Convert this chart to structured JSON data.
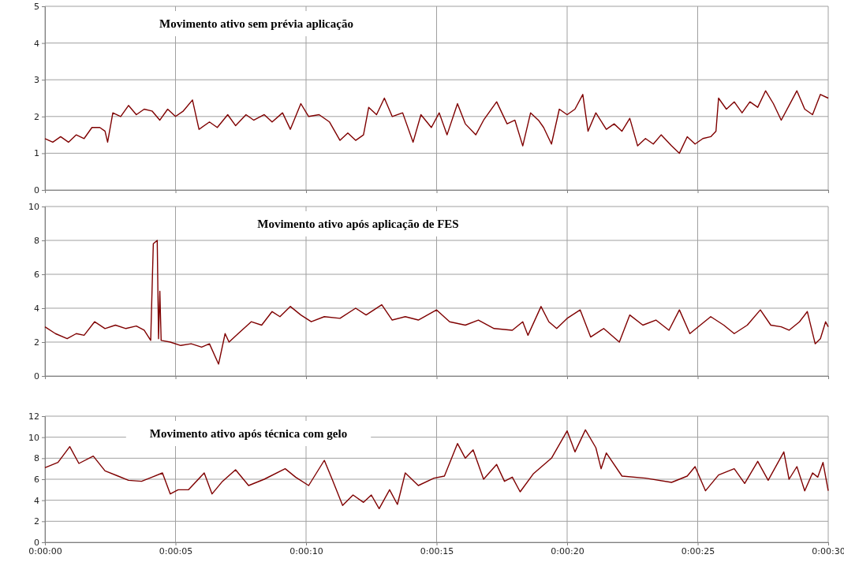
{
  "chart_data": [
    {
      "type": "line",
      "title": "Movimento ativo sem prévia aplicação",
      "xlim": [
        0,
        30
      ],
      "xticks": [
        0,
        5,
        10,
        15,
        20,
        25,
        30
      ],
      "ylim": [
        0,
        5
      ],
      "yticks": [
        0,
        1,
        2,
        3,
        4,
        5
      ],
      "grid": true,
      "tick_labels": "y",
      "x": [
        0,
        0.3,
        0.6,
        0.9,
        1.2,
        1.5,
        1.8,
        2.1,
        2.3,
        2.4,
        2.6,
        2.9,
        3.2,
        3.5,
        3.8,
        4.1,
        4.4,
        4.7,
        5.0,
        5.3,
        5.65,
        5.9,
        6.3,
        6.6,
        7.0,
        7.3,
        7.7,
        8.0,
        8.4,
        8.7,
        9.1,
        9.4,
        9.8,
        10.1,
        10.5,
        10.9,
        11.3,
        11.6,
        11.9,
        12.2,
        12.4,
        12.7,
        13.0,
        13.3,
        13.7,
        14.1,
        14.4,
        14.8,
        15.1,
        15.4,
        15.8,
        16.1,
        16.5,
        16.8,
        17.3,
        17.7,
        18.0,
        18.3,
        18.6,
        18.9,
        19.1,
        19.4,
        19.7,
        20.0,
        20.3,
        20.6,
        20.8,
        21.1,
        21.5,
        21.8,
        22.1,
        22.4,
        22.7,
        23.0,
        23.3,
        23.6,
        24.0,
        24.3,
        24.6,
        24.9,
        25.2,
        25.5,
        25.7,
        25.8,
        26.1,
        26.4,
        26.7,
        27.0,
        27.3,
        27.6,
        27.9,
        28.2,
        28.5,
        28.8,
        29.1,
        29.4,
        29.7,
        30
      ],
      "series": [
        {
          "color": "#7f0000",
          "values": [
            1.4,
            1.3,
            1.45,
            1.3,
            1.5,
            1.4,
            1.7,
            1.7,
            1.6,
            1.3,
            2.1,
            2.0,
            2.3,
            2.05,
            2.2,
            2.15,
            1.9,
            2.2,
            2.0,
            2.15,
            2.45,
            1.65,
            1.85,
            1.7,
            2.05,
            1.75,
            2.05,
            1.9,
            2.05,
            1.85,
            2.1,
            1.65,
            2.35,
            2.0,
            2.05,
            1.85,
            1.35,
            1.55,
            1.35,
            1.5,
            2.25,
            2.05,
            2.5,
            2.0,
            2.1,
            1.3,
            2.05,
            1.7,
            2.1,
            1.5,
            2.35,
            1.8,
            1.5,
            1.9,
            2.4,
            1.8,
            1.9,
            1.2,
            2.1,
            1.9,
            1.7,
            1.25,
            2.2,
            2.05,
            2.2,
            2.6,
            1.6,
            2.1,
            1.65,
            1.8,
            1.6,
            1.95,
            1.2,
            1.4,
            1.25,
            1.5,
            1.2,
            1.0,
            1.45,
            1.25,
            1.4,
            1.45,
            1.6,
            2.5,
            2.2,
            2.4,
            2.1,
            2.4,
            2.25,
            2.7,
            2.35,
            1.9,
            2.3,
            2.7,
            2.2,
            2.05,
            2.6,
            2.5
          ]
        }
      ]
    },
    {
      "type": "line",
      "title": "Movimento ativo após aplicação de FES",
      "xlim": [
        0,
        30
      ],
      "xticks": [
        0,
        5,
        10,
        15,
        20,
        25,
        30
      ],
      "ylim": [
        0,
        10
      ],
      "yticks": [
        0,
        2,
        4,
        6,
        8,
        10
      ],
      "grid": true,
      "tick_labels": "y",
      "x": [
        0,
        0.4,
        0.85,
        1.2,
        1.5,
        1.9,
        2.3,
        2.7,
        3.1,
        3.5,
        3.8,
        4.05,
        4.15,
        4.3,
        4.35,
        4.4,
        4.45,
        4.8,
        5.2,
        5.6,
        6.0,
        6.3,
        6.65,
        6.9,
        7.05,
        7.4,
        7.9,
        8.3,
        8.7,
        9.0,
        9.4,
        9.8,
        10.2,
        10.7,
        11.3,
        11.9,
        12.3,
        12.9,
        13.3,
        13.8,
        14.3,
        15.0,
        15.5,
        16.1,
        16.6,
        17.2,
        17.9,
        18.3,
        18.5,
        19.0,
        19.3,
        19.6,
        20.0,
        20.5,
        20.9,
        21.4,
        22.0,
        22.4,
        22.9,
        23.4,
        23.9,
        24.3,
        24.7,
        25.1,
        25.5,
        26.0,
        26.4,
        26.9,
        27.4,
        27.8,
        28.2,
        28.5,
        28.9,
        29.2,
        29.5,
        29.7,
        29.9,
        30
      ],
      "series": [
        {
          "color": "#7f0000",
          "values": [
            2.9,
            2.5,
            2.2,
            2.5,
            2.4,
            3.2,
            2.8,
            3.0,
            2.8,
            2.95,
            2.7,
            2.1,
            7.8,
            8.0,
            2.2,
            5.0,
            2.1,
            2.0,
            1.8,
            1.9,
            1.7,
            1.9,
            0.7,
            2.5,
            2.0,
            2.5,
            3.2,
            3.0,
            3.8,
            3.5,
            4.1,
            3.6,
            3.2,
            3.5,
            3.4,
            4.0,
            3.6,
            4.2,
            3.3,
            3.5,
            3.3,
            3.9,
            3.2,
            3.0,
            3.3,
            2.8,
            2.7,
            3.2,
            2.4,
            4.1,
            3.2,
            2.8,
            3.4,
            3.9,
            2.3,
            2.8,
            2.0,
            3.6,
            3.0,
            3.3,
            2.7,
            3.9,
            2.5,
            3.0,
            3.5,
            3.0,
            2.5,
            3.0,
            3.9,
            3.0,
            2.9,
            2.7,
            3.2,
            3.8,
            1.9,
            2.2,
            3.2,
            2.9
          ]
        }
      ]
    },
    {
      "type": "line",
      "title": "Movimento ativo após técnica com gelo",
      "xlim": [
        0,
        30
      ],
      "xticks": [
        {
          "value": 0,
          "label": "0:00:00"
        },
        {
          "value": 5,
          "label": "0:00:05"
        },
        {
          "value": 10,
          "label": "0:00:10"
        },
        {
          "value": 15,
          "label": "0:00:15"
        },
        {
          "value": 20,
          "label": "0:00:20"
        },
        {
          "value": 25,
          "label": "0:00:25"
        },
        {
          "value": 30,
          "label": "0:00:30"
        }
      ],
      "ylim": [
        0,
        12
      ],
      "yticks": [
        0,
        2,
        4,
        6,
        8,
        10,
        12
      ],
      "grid": true,
      "x": [
        0,
        0.5,
        0.95,
        1.3,
        1.85,
        2.3,
        2.8,
        3.2,
        3.7,
        4.1,
        4.5,
        4.8,
        5.1,
        5.5,
        6.1,
        6.4,
        6.8,
        7.3,
        7.8,
        8.4,
        9.2,
        9.6,
        10.1,
        10.7,
        11.0,
        11.4,
        11.8,
        12.2,
        12.5,
        12.8,
        13.2,
        13.5,
        13.8,
        14.3,
        14.9,
        15.3,
        15.8,
        16.1,
        16.4,
        16.8,
        17.3,
        17.6,
        17.9,
        18.2,
        18.7,
        19.4,
        20.0,
        20.3,
        20.7,
        21.1,
        21.3,
        21.5,
        22.1,
        23.0,
        24.0,
        24.6,
        24.9,
        25.3,
        25.8,
        26.4,
        26.8,
        27.3,
        27.7,
        28.3,
        28.5,
        28.8,
        29.1,
        29.4,
        29.6,
        29.8,
        30
      ],
      "series": [
        {
          "color": "#7f0000",
          "values": [
            7.1,
            7.6,
            9.1,
            7.5,
            8.2,
            6.8,
            6.3,
            5.9,
            5.8,
            6.2,
            6.6,
            4.6,
            5.0,
            5.0,
            6.6,
            4.6,
            5.8,
            6.9,
            5.4,
            6.0,
            7.0,
            6.2,
            5.4,
            7.8,
            6.0,
            3.5,
            4.5,
            3.8,
            4.5,
            3.2,
            5.0,
            3.6,
            6.6,
            5.4,
            6.1,
            6.3,
            9.4,
            8.0,
            8.8,
            6.0,
            7.4,
            5.8,
            6.2,
            4.8,
            6.5,
            8.0,
            10.6,
            8.6,
            10.7,
            9.0,
            7.0,
            8.5,
            6.3,
            6.1,
            5.7,
            6.3,
            7.2,
            4.9,
            6.4,
            7.0,
            5.6,
            7.7,
            5.9,
            8.6,
            6.0,
            7.2,
            4.9,
            6.6,
            6.2,
            7.6,
            4.9
          ]
        }
      ]
    }
  ]
}
